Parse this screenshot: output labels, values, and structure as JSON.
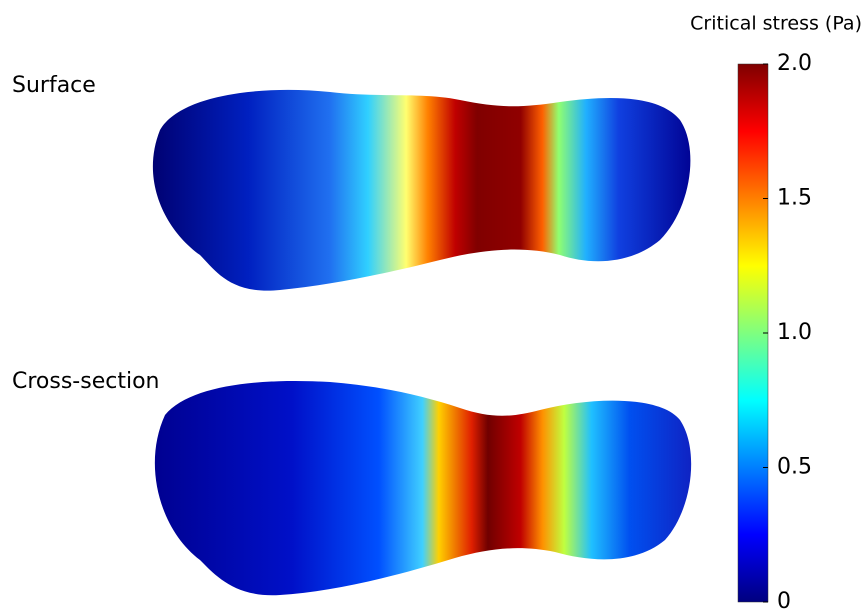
{
  "panels": [
    {
      "label": "Surface"
    },
    {
      "label": "Cross-section"
    }
  ],
  "colorbar": {
    "title": "Critical stress (Pa)",
    "lim": [
      0,
      2
    ],
    "ticks": [
      0,
      0.5,
      {
        "value": 1,
        "label": "1.0"
      },
      1.5,
      {
        "value": 2,
        "label": "2.0"
      }
    ],
    "colors": [
      "#00007f",
      "#0000ff",
      "#007fff",
      "#00ffff",
      "#7fff7f",
      "#ffff00",
      "#ff7f00",
      "#ff0000",
      "#7f0000"
    ]
  }
}
